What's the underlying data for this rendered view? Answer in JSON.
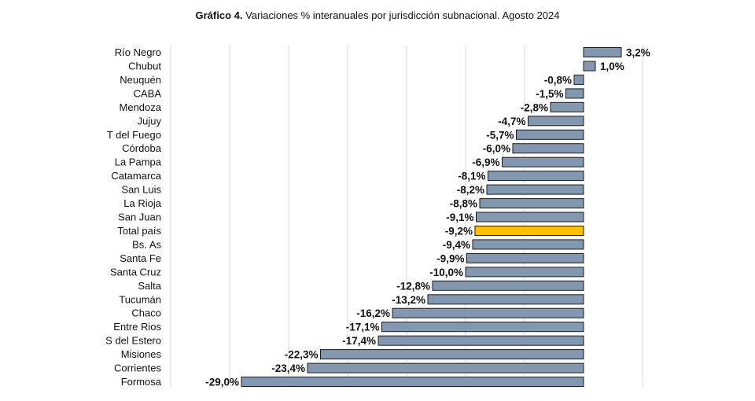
{
  "chart_data": {
    "type": "bar",
    "orientation": "horizontal",
    "title_bold": "Gráfico 4.",
    "title": "Variaciones % interanuales por jurisdicción subnacional. Agosto 2024",
    "xlim": [
      -29.0,
      3.2
    ],
    "categories": [
      "Río Negro",
      "Chubut",
      "Neuquén",
      "CABA",
      "Mendoza",
      "Jujuy",
      "T del Fuego",
      "Córdoba",
      "La Pampa",
      "Catamarca",
      "San Luis",
      "La Rioja",
      "San Juan",
      "Total país",
      "Bs. As",
      "Santa Fe",
      "Santa Cruz",
      "Salta",
      "Tucumán",
      "Chaco",
      "Entre Rios",
      "S del Estero",
      "Misiones",
      "Corrientes",
      "Formosa"
    ],
    "values": [
      3.2,
      1.0,
      -0.8,
      -1.5,
      -2.8,
      -4.7,
      -5.7,
      -6.0,
      -6.9,
      -8.1,
      -8.2,
      -8.8,
      -9.1,
      -9.2,
      -9.4,
      -9.9,
      -10.0,
      -12.8,
      -13.2,
      -16.2,
      -17.1,
      -17.4,
      -22.3,
      -23.4,
      -29.0
    ],
    "value_labels": [
      "3,2%",
      "1,0%",
      "-0,8%",
      "-1,5%",
      "-2,8%",
      "-4,7%",
      "-5,7%",
      "-6,0%",
      "-6,9%",
      "-8,1%",
      "-8,2%",
      "-8,8%",
      "-9,1%",
      "-9,2%",
      "-9,4%",
      "-9,9%",
      "-10,0%",
      "-12,8%",
      "-13,2%",
      "-16,2%",
      "-17,1%",
      "-17,4%",
      "-22,3%",
      "-23,4%",
      "-29,0%"
    ],
    "highlight_category": "Total país",
    "colors": {
      "bar": "#8497b0",
      "highlight": "#ffc000",
      "border": "#1a1a1a",
      "grid": "#d9d9d9"
    },
    "grid": true,
    "legend": "none"
  }
}
